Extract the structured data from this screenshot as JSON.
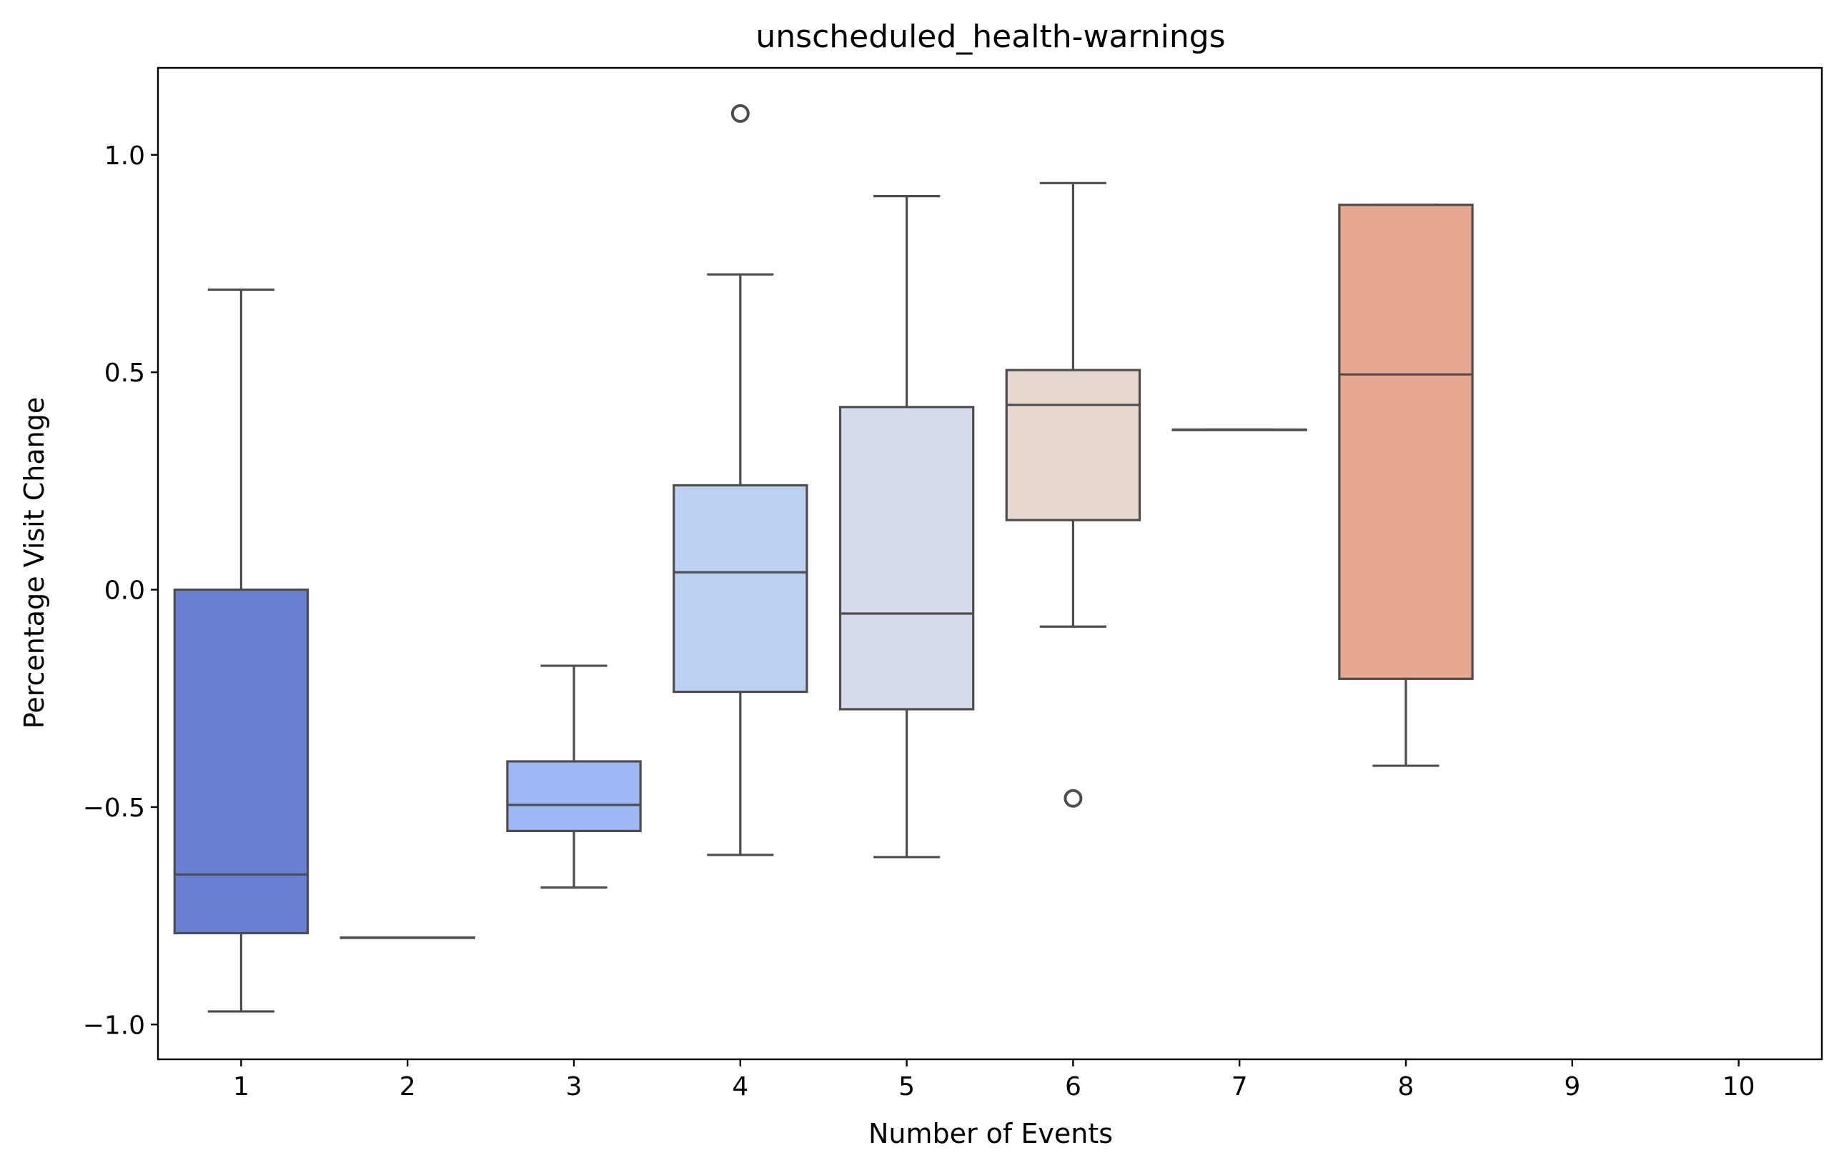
{
  "chart_data": {
    "type": "box",
    "title": "unscheduled_health-warnings",
    "xlabel": "Number of Events",
    "ylabel": "Percentage Visit Change",
    "categories": [
      "1",
      "2",
      "3",
      "4",
      "5",
      "6",
      "7",
      "8",
      "9",
      "10"
    ],
    "ylim": [
      -1.08,
      1.2
    ],
    "yticks": [
      1.0,
      0.5,
      0.0,
      -0.5,
      -1.0
    ],
    "ytick_labels": [
      "1.0",
      "0.5",
      "0.0",
      "−0.5",
      "−1.0"
    ],
    "grid": false,
    "boxes": [
      {
        "category": "1",
        "whisker_low": -0.97,
        "q1": -0.79,
        "median": -0.655,
        "q3": 0.0,
        "whisker_high": 0.69,
        "outliers": [],
        "color": "#6a7fd1"
      },
      {
        "category": "2",
        "whisker_low": -0.8,
        "q1": -0.8,
        "median": -0.8,
        "q3": -0.8,
        "whisker_high": -0.8,
        "outliers": [],
        "color": "#8ea6ef"
      },
      {
        "category": "3",
        "whisker_low": -0.685,
        "q1": -0.555,
        "median": -0.495,
        "q3": -0.395,
        "whisker_high": -0.175,
        "outliers": [],
        "color": "#9db8f4"
      },
      {
        "category": "4",
        "whisker_low": -0.61,
        "q1": -0.235,
        "median": 0.04,
        "q3": 0.24,
        "whisker_high": 0.725,
        "outliers": [
          1.095
        ],
        "color": "#bcd0f2"
      },
      {
        "category": "5",
        "whisker_low": -0.615,
        "q1": -0.275,
        "median": -0.055,
        "q3": 0.42,
        "whisker_high": 0.905,
        "outliers": [],
        "color": "#d5dbea"
      },
      {
        "category": "6",
        "whisker_low": -0.085,
        "q1": 0.16,
        "median": 0.425,
        "q3": 0.505,
        "whisker_high": 0.935,
        "outliers": [
          -0.48
        ],
        "color": "#e6d7cf"
      },
      {
        "category": "7",
        "whisker_low": 0.368,
        "q1": 0.368,
        "median": 0.368,
        "q3": 0.368,
        "whisker_high": 0.368,
        "outliers": [],
        "color": "#f0c6b2"
      },
      {
        "category": "8",
        "whisker_low": -0.405,
        "q1": -0.205,
        "median": 0.495,
        "q3": 0.885,
        "whisker_high": 0.885,
        "outliers": [],
        "color": "#e8a78f"
      }
    ],
    "line_color": "#4d4d4d"
  }
}
